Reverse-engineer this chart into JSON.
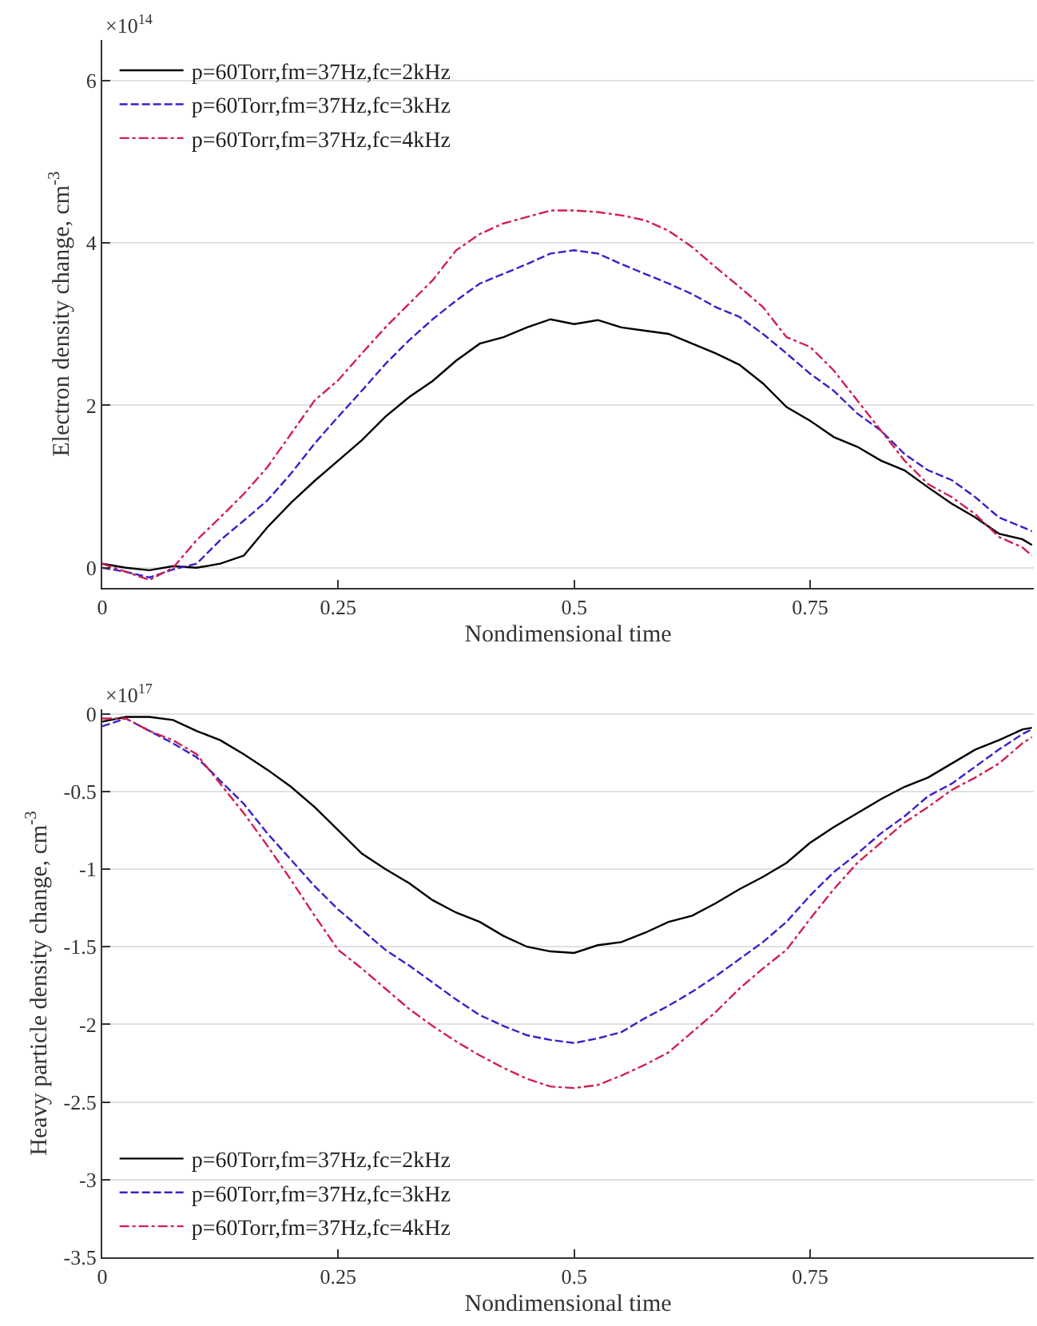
{
  "chart_data": [
    {
      "type": "line",
      "xlabel": "Nondimensional time",
      "ylabel": "Electron density change, cm$^{-3}$",
      "annotations": [
        "×10$^{14}$"
      ],
      "x": [
        0,
        0.025,
        0.05,
        0.075,
        0.1,
        0.125,
        0.15,
        0.175,
        0.2,
        0.225,
        0.25,
        0.275,
        0.3,
        0.325,
        0.35,
        0.375,
        0.4,
        0.425,
        0.45,
        0.475,
        0.5,
        0.525,
        0.55,
        0.575,
        0.6,
        0.625,
        0.65,
        0.675,
        0.7,
        0.725,
        0.75,
        0.775,
        0.8,
        0.825,
        0.85,
        0.875,
        0.9,
        0.925,
        0.95,
        0.975,
        0.985
      ],
      "xlim": [
        0,
        0.987
      ],
      "xticks": [
        0,
        0.25,
        0.5,
        0.75
      ],
      "ylim": [
        -0.25,
        6.5
      ],
      "yticks": [
        0,
        2,
        4,
        6
      ],
      "grid": "y",
      "legend": "top left",
      "series": [
        {
          "name": "p=60Torr,fm=37Hz,fc=2kHz",
          "color": "#000000",
          "line_style": "solid",
          "values": [
            0.05,
            0.0,
            -0.03,
            0.02,
            0.0,
            0.05,
            0.15,
            0.5,
            0.8,
            1.07,
            1.32,
            1.57,
            1.86,
            2.1,
            2.3,
            2.55,
            2.76,
            2.84,
            2.96,
            3.06,
            3.0,
            3.05,
            2.96,
            2.92,
            2.88,
            2.76,
            2.64,
            2.5,
            2.27,
            1.98,
            1.81,
            1.61,
            1.49,
            1.32,
            1.2,
            0.99,
            0.79,
            0.62,
            0.42,
            0.35,
            0.28
          ]
        },
        {
          "name": "p=60Torr,fm=37Hz,fc=3kHz",
          "color": "#3c1ecb",
          "line_style": "dashed",
          "values": [
            0.0,
            -0.05,
            -0.12,
            -0.02,
            0.05,
            0.34,
            0.58,
            0.83,
            1.16,
            1.53,
            1.86,
            2.18,
            2.51,
            2.8,
            3.06,
            3.29,
            3.5,
            3.62,
            3.74,
            3.87,
            3.91,
            3.87,
            3.74,
            3.62,
            3.5,
            3.37,
            3.21,
            3.09,
            2.88,
            2.64,
            2.39,
            2.18,
            1.9,
            1.69,
            1.4,
            1.2,
            1.08,
            0.87,
            0.62,
            0.5,
            0.45
          ]
        },
        {
          "name": "p=60Torr,fm=37Hz,fc=4kHz",
          "color": "#d0204f",
          "line_style": "dashdot",
          "values": [
            0.05,
            -0.05,
            -0.15,
            0.0,
            0.34,
            0.62,
            0.91,
            1.24,
            1.65,
            2.06,
            2.31,
            2.64,
            2.96,
            3.25,
            3.54,
            3.91,
            4.11,
            4.24,
            4.32,
            4.4,
            4.4,
            4.38,
            4.34,
            4.28,
            4.15,
            3.95,
            3.7,
            3.46,
            3.21,
            2.84,
            2.72,
            2.43,
            2.06,
            1.69,
            1.32,
            1.03,
            0.87,
            0.66,
            0.38,
            0.25,
            0.15
          ]
        }
      ]
    },
    {
      "type": "line",
      "xlabel": "Nondimensional time",
      "ylabel": "Heavy particle density change, cm$^{-3}$",
      "annotations": [
        "×10$^{17}$"
      ],
      "x": [
        0,
        0.025,
        0.05,
        0.075,
        0.1,
        0.125,
        0.15,
        0.175,
        0.2,
        0.225,
        0.25,
        0.275,
        0.3,
        0.325,
        0.35,
        0.375,
        0.4,
        0.425,
        0.45,
        0.475,
        0.5,
        0.525,
        0.55,
        0.575,
        0.6,
        0.625,
        0.65,
        0.675,
        0.7,
        0.725,
        0.75,
        0.775,
        0.8,
        0.825,
        0.85,
        0.875,
        0.9,
        0.925,
        0.95,
        0.975,
        0.985
      ],
      "xlim": [
        0,
        0.987
      ],
      "xticks": [
        0,
        0.25,
        0.5,
        0.75
      ],
      "ylim": [
        -3.5,
        0.03
      ],
      "yticks": [
        -3.5,
        -3,
        -2.5,
        -2,
        -1.5,
        -1,
        -0.5,
        0
      ],
      "grid": "y",
      "legend": "bottom left",
      "series": [
        {
          "name": "p=60Torr,fm=37Hz,fc=2kHz",
          "color": "#000000",
          "line_style": "solid",
          "values": [
            -0.05,
            -0.02,
            -0.02,
            -0.04,
            -0.11,
            -0.17,
            -0.26,
            -0.36,
            -0.47,
            -0.6,
            -0.75,
            -0.9,
            -1.0,
            -1.09,
            -1.2,
            -1.28,
            -1.34,
            -1.43,
            -1.5,
            -1.53,
            -1.54,
            -1.49,
            -1.47,
            -1.41,
            -1.34,
            -1.3,
            -1.22,
            -1.13,
            -1.05,
            -0.96,
            -0.83,
            -0.73,
            -0.64,
            -0.55,
            -0.47,
            -0.41,
            -0.32,
            -0.23,
            -0.17,
            -0.1,
            -0.09
          ]
        },
        {
          "name": "p=60Torr,fm=37Hz,fc=3kHz",
          "color": "#3c1ecb",
          "line_style": "dashed",
          "values": [
            -0.08,
            -0.03,
            -0.11,
            -0.19,
            -0.28,
            -0.43,
            -0.58,
            -0.77,
            -0.94,
            -1.11,
            -1.26,
            -1.39,
            -1.52,
            -1.62,
            -1.73,
            -1.84,
            -1.94,
            -2.01,
            -2.07,
            -2.1,
            -2.12,
            -2.09,
            -2.05,
            -1.96,
            -1.88,
            -1.79,
            -1.69,
            -1.58,
            -1.47,
            -1.34,
            -1.17,
            -1.02,
            -0.9,
            -0.77,
            -0.66,
            -0.53,
            -0.45,
            -0.34,
            -0.23,
            -0.13,
            -0.1
          ]
        },
        {
          "name": "p=60Torr,fm=37Hz,fc=4kHz",
          "color": "#d0204f",
          "line_style": "dashdot",
          "values": [
            -0.03,
            -0.03,
            -0.11,
            -0.17,
            -0.26,
            -0.45,
            -0.64,
            -0.85,
            -1.07,
            -1.3,
            -1.52,
            -1.64,
            -1.77,
            -1.9,
            -2.01,
            -2.11,
            -2.2,
            -2.28,
            -2.35,
            -2.4,
            -2.41,
            -2.39,
            -2.33,
            -2.26,
            -2.18,
            -2.05,
            -1.92,
            -1.77,
            -1.64,
            -1.52,
            -1.32,
            -1.13,
            -0.96,
            -0.83,
            -0.7,
            -0.6,
            -0.49,
            -0.41,
            -0.32,
            -0.19,
            -0.15
          ]
        }
      ]
    }
  ]
}
